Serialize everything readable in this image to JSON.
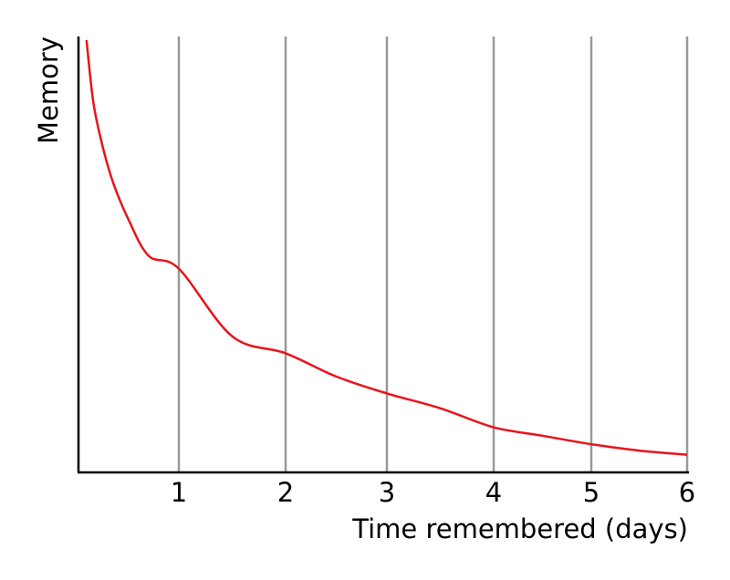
{
  "chart_data": {
    "type": "line",
    "title": "",
    "xlabel": "Time remembered (days)",
    "ylabel": "Memory",
    "xlim": [
      0,
      6
    ],
    "ylim": [
      0,
      1
    ],
    "x_ticks": [
      1,
      2,
      3,
      4,
      5,
      6
    ],
    "y_ticks_shown": false,
    "grid": "vertical",
    "series": [
      {
        "color": "#e8141b",
        "x": [
          0.08,
          0.15,
          0.25,
          0.35,
          0.5,
          0.7,
          1.0,
          1.5,
          2.0,
          2.5,
          3.0,
          3.5,
          4.0,
          4.5,
          5.0,
          5.5,
          6.0
        ],
        "y": [
          1.0,
          0.85,
          0.74,
          0.66,
          0.575,
          0.49,
          0.46,
          0.3,
          0.26,
          0.205,
          0.165,
          0.13,
          0.085,
          0.065,
          0.045,
          0.03,
          0.02
        ]
      }
    ]
  },
  "colors": {
    "axis": "#000000",
    "grid": "#999999",
    "curve": "#e8141b"
  }
}
